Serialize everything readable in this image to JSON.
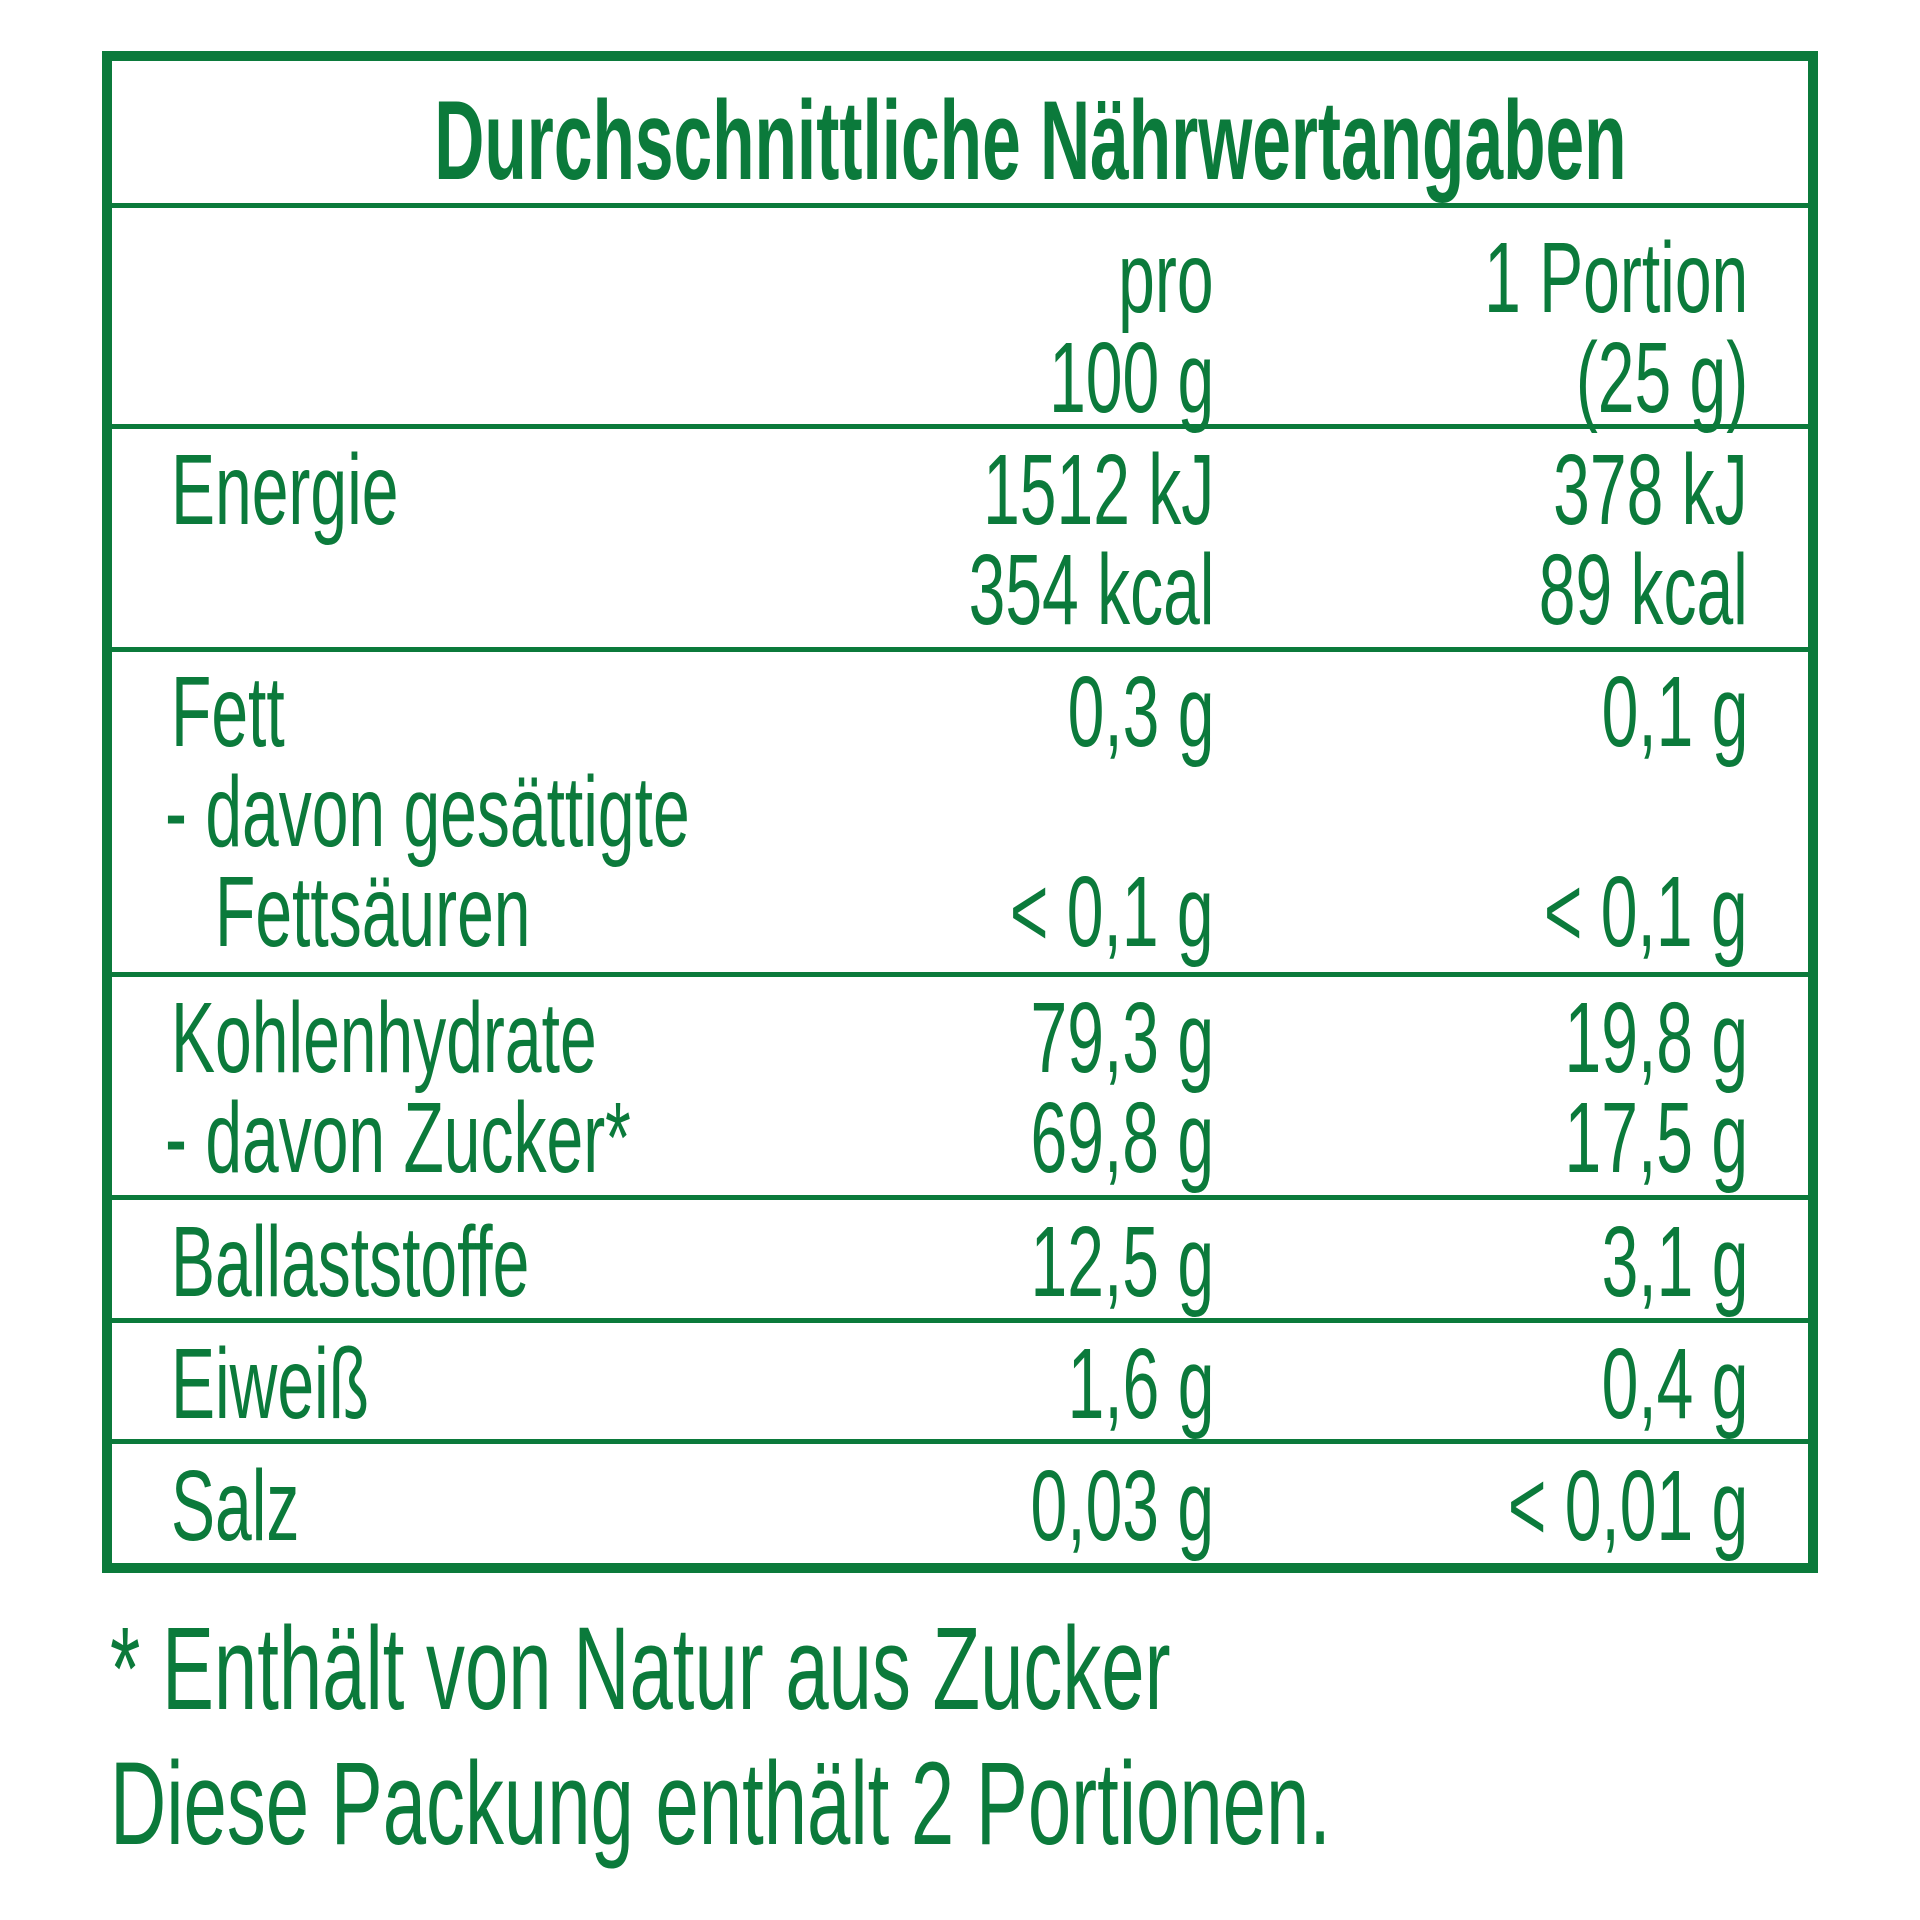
{
  "title": "Durchschnittliche Nährwertangaben",
  "header": {
    "col1": [
      "pro",
      "100 g"
    ],
    "col2": [
      "1 Portion",
      "(25 g)"
    ]
  },
  "rows": [
    {
      "label": [
        "Energie"
      ],
      "col1": [
        "1512 kJ",
        "354 kcal"
      ],
      "col2": [
        "378 kJ",
        "89 kcal"
      ]
    },
    {
      "label": [
        "Fett",
        "- davon gesättigte",
        "Fettsäuren"
      ],
      "col1": [
        "0,3 g",
        "",
        "< 0,1 g"
      ],
      "col2": [
        "0,1 g",
        "",
        "< 0,1 g"
      ]
    },
    {
      "label": [
        "Kohlenhydrate",
        "- davon Zucker*"
      ],
      "col1": [
        "79,3 g",
        "69,8 g"
      ],
      "col2": [
        "19,8 g",
        "17,5 g"
      ]
    },
    {
      "label": [
        "Ballaststoffe"
      ],
      "col1": [
        "12,5 g"
      ],
      "col2": [
        "3,1 g"
      ]
    },
    {
      "label": [
        "Eiweiß"
      ],
      "col1": [
        "1,6 g"
      ],
      "col2": [
        "0,4 g"
      ]
    },
    {
      "label": [
        "Salz"
      ],
      "col1": [
        "0,03 g"
      ],
      "col2": [
        "< 0,01 g"
      ]
    }
  ],
  "footnote": "* Enthält von Natur aus Zucker",
  "servings_note": "Diese Packung enthält 2 Portionen.",
  "colors": {
    "primary": "#0b7a3b",
    "background": "#ffffff"
  }
}
